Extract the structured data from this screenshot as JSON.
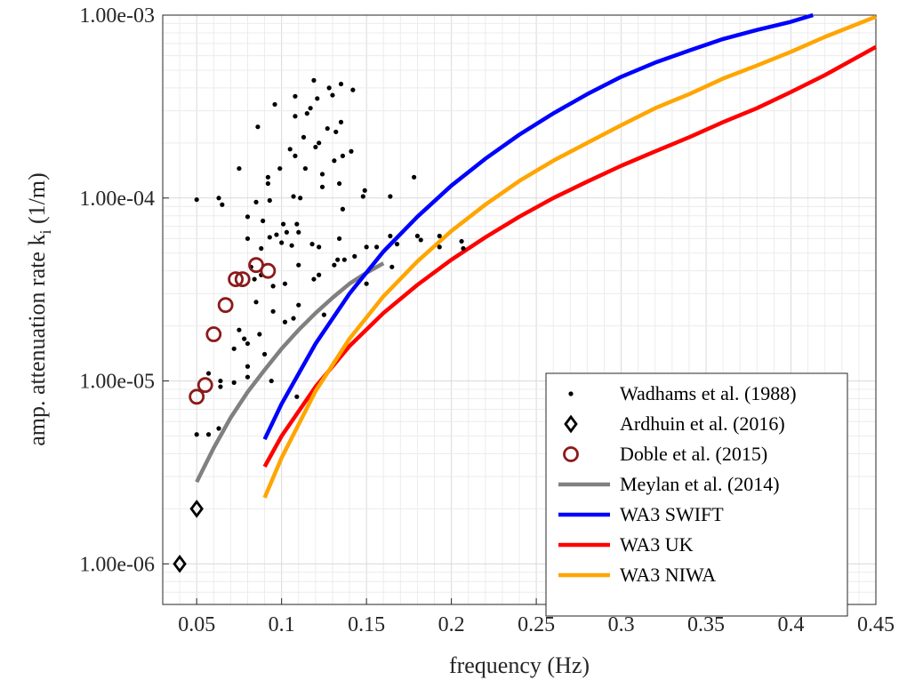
{
  "chart_data": {
    "type": "scatter",
    "xlabel": "frequency (Hz)",
    "ylabel_main": "amp. attenuation rate k",
    "ylabel_sub": "i",
    "ylabel_unit": " (1/m)",
    "xlim": [
      0.03,
      0.45
    ],
    "ylim": [
      6e-07,
      0.001
    ],
    "y_scale": "log",
    "grid": true,
    "legend_position": "bottom-right",
    "x_ticks": [
      0.05,
      0.1,
      0.15,
      0.2,
      0.25,
      0.3,
      0.35,
      0.4,
      0.45
    ],
    "x_tick_labels": [
      "0.05",
      "0.1",
      "0.15",
      "0.2",
      "0.25",
      "0.3",
      "0.35",
      "0.4",
      "0.45"
    ],
    "y_ticks": [
      1e-06,
      1e-05,
      0.0001,
      0.001
    ],
    "y_tick_labels": [
      "1.00e-06",
      "1.00e-05",
      "1.00e-04",
      "1.00e-03"
    ],
    "series": [
      {
        "name": "Wadhams et al. (1988)",
        "kind": "dots",
        "color": "#000000",
        "points": [
          [
            0.05,
            9.8e-05
          ],
          [
            0.05,
            5.1e-06
          ],
          [
            0.057,
            5.1e-06
          ],
          [
            0.057,
            1.1e-05
          ],
          [
            0.063,
            0.0001
          ],
          [
            0.065,
            9.2e-05
          ],
          [
            0.063,
            5.5e-06
          ],
          [
            0.064,
            9.3e-06
          ],
          [
            0.064,
            1e-05
          ],
          [
            0.072,
            9.8e-06
          ],
          [
            0.072,
            1.5e-05
          ],
          [
            0.075,
            0.000145
          ],
          [
            0.075,
            1.9e-05
          ],
          [
            0.078,
            1.7e-05
          ],
          [
            0.08,
            1.6e-05
          ],
          [
            0.08,
            1.2e-05
          ],
          [
            0.08,
            1.05e-05
          ],
          [
            0.08,
            7.9e-05
          ],
          [
            0.08,
            6e-05
          ],
          [
            0.082,
            4.2e-05
          ],
          [
            0.084,
            3.6e-05
          ],
          [
            0.085,
            2.7e-05
          ],
          [
            0.085,
            9.5e-05
          ],
          [
            0.086,
            0.000245
          ],
          [
            0.087,
            1.8e-05
          ],
          [
            0.088,
            3.8e-05
          ],
          [
            0.088,
            5.3e-05
          ],
          [
            0.089,
            7.5e-05
          ],
          [
            0.09,
            1.4e-05
          ],
          [
            0.092,
            0.00013
          ],
          [
            0.092,
            0.00012
          ],
          [
            0.093,
            9.7e-05
          ],
          [
            0.093,
            6.1e-05
          ],
          [
            0.094,
            1e-05
          ],
          [
            0.095,
            2.4e-05
          ],
          [
            0.095,
            3.3e-05
          ],
          [
            0.096,
            0.000325
          ],
          [
            0.097,
            6.3e-05
          ],
          [
            0.099,
            0.000145
          ],
          [
            0.1,
            5.7e-05
          ],
          [
            0.101,
            7.2e-05
          ],
          [
            0.102,
            2.1e-05
          ],
          [
            0.102,
            3.4e-05
          ],
          [
            0.103,
            6.5e-05
          ],
          [
            0.105,
            0.000185
          ],
          [
            0.106,
            5.5e-05
          ],
          [
            0.107,
            2.2e-05
          ],
          [
            0.107,
            0.000102
          ],
          [
            0.108,
            0.00036
          ],
          [
            0.108,
            0.00028
          ],
          [
            0.108,
            0.00017
          ],
          [
            0.109,
            7.2e-05
          ],
          [
            0.11,
            6.5e-05
          ],
          [
            0.11,
            4.3e-05
          ],
          [
            0.11,
            2.6e-05
          ],
          [
            0.111,
            0.0001
          ],
          [
            0.113,
            0.000215
          ],
          [
            0.114,
            0.000145
          ],
          [
            0.115,
            0.00029
          ],
          [
            0.117,
            0.00031
          ],
          [
            0.118,
            5.6e-05
          ],
          [
            0.119,
            3.6e-05
          ],
          [
            0.119,
            0.00044
          ],
          [
            0.12,
            0.00019
          ],
          [
            0.121,
            0.00035
          ],
          [
            0.122,
            0.0002
          ],
          [
            0.122,
            3.8e-05
          ],
          [
            0.122,
            5.4e-05
          ],
          [
            0.124,
            0.000135
          ],
          [
            0.124,
            0.000115
          ],
          [
            0.125,
            2.3e-05
          ],
          [
            0.127,
            0.00024
          ],
          [
            0.128,
            0.0004
          ],
          [
            0.13,
            0.000365
          ],
          [
            0.131,
            0.00016
          ],
          [
            0.131,
            4.3e-05
          ],
          [
            0.132,
            0.00023
          ],
          [
            0.133,
            4.6e-05
          ],
          [
            0.134,
            6e-05
          ],
          [
            0.134,
            0.00012
          ],
          [
            0.135,
            0.00042
          ],
          [
            0.135,
            0.00026
          ],
          [
            0.136,
            0.00017
          ],
          [
            0.136,
            8.7e-05
          ],
          [
            0.137,
            4.6e-05
          ],
          [
            0.141,
            0.00018
          ],
          [
            0.142,
            0.00039
          ],
          [
            0.143,
            4.8e-05
          ],
          [
            0.148,
            0.000102
          ],
          [
            0.149,
            0.00011
          ],
          [
            0.15,
            5.4e-05
          ],
          [
            0.15,
            3.4e-05
          ],
          [
            0.156,
            5.4e-05
          ],
          [
            0.164,
            0.000102
          ],
          [
            0.164,
            6.2e-05
          ],
          [
            0.165,
            4.2e-05
          ],
          [
            0.168,
            5.6e-05
          ],
          [
            0.178,
            0.00013
          ],
          [
            0.18,
            6.2e-05
          ],
          [
            0.182,
            5.9e-05
          ],
          [
            0.193,
            6.2e-05
          ],
          [
            0.193,
            5.4e-05
          ],
          [
            0.206,
            5.8e-05
          ],
          [
            0.207,
            5.3e-05
          ],
          [
            0.109,
            8.2e-06
          ]
        ]
      },
      {
        "name": "Ardhuin et al. (2016)",
        "kind": "diamond",
        "color": "#000000",
        "points": [
          [
            0.04,
            1e-06
          ],
          [
            0.05,
            2e-06
          ]
        ]
      },
      {
        "name": "Doble et al. (2015)",
        "kind": "circle",
        "color": "#8b1a1a",
        "points": [
          [
            0.05,
            8.2e-06
          ],
          [
            0.055,
            9.5e-06
          ],
          [
            0.06,
            1.8e-05
          ],
          [
            0.067,
            2.6e-05
          ],
          [
            0.073,
            3.6e-05
          ],
          [
            0.077,
            3.6e-05
          ],
          [
            0.085,
            4.3e-05
          ],
          [
            0.092,
            4e-05
          ]
        ]
      },
      {
        "name": "Meylan et al. (2014)",
        "kind": "line",
        "color": "#808080",
        "points": [
          [
            0.05,
            2.8e-06
          ],
          [
            0.06,
            4.3e-06
          ],
          [
            0.07,
            6.3e-06
          ],
          [
            0.08,
            8.7e-06
          ],
          [
            0.09,
            1.15e-05
          ],
          [
            0.1,
            1.5e-05
          ],
          [
            0.11,
            1.9e-05
          ],
          [
            0.12,
            2.35e-05
          ],
          [
            0.13,
            2.85e-05
          ],
          [
            0.14,
            3.4e-05
          ],
          [
            0.15,
            3.9e-05
          ],
          [
            0.16,
            4.4e-05
          ]
        ]
      },
      {
        "name": "WA3 SWIFT",
        "kind": "line",
        "color": "#0000ff",
        "points": [
          [
            0.09,
            4.8e-06
          ],
          [
            0.1,
            7.5e-06
          ],
          [
            0.12,
            1.6e-05
          ],
          [
            0.14,
            3e-05
          ],
          [
            0.16,
            5.1e-05
          ],
          [
            0.18,
            7.9e-05
          ],
          [
            0.2,
            0.000117
          ],
          [
            0.22,
            0.000164
          ],
          [
            0.24,
            0.000222
          ],
          [
            0.26,
            0.00029
          ],
          [
            0.28,
            0.00037
          ],
          [
            0.3,
            0.00046
          ],
          [
            0.32,
            0.00055
          ],
          [
            0.34,
            0.00064
          ],
          [
            0.36,
            0.00074
          ],
          [
            0.38,
            0.00083
          ],
          [
            0.4,
            0.00092
          ],
          [
            0.413,
            0.001
          ]
        ]
      },
      {
        "name": "WA3 UK",
        "kind": "line",
        "color": "#ff0000",
        "points": [
          [
            0.09,
            3.4e-06
          ],
          [
            0.1,
            5e-06
          ],
          [
            0.12,
            9.3e-06
          ],
          [
            0.14,
            1.55e-05
          ],
          [
            0.16,
            2.35e-05
          ],
          [
            0.18,
            3.35e-05
          ],
          [
            0.2,
            4.6e-05
          ],
          [
            0.22,
            6.1e-05
          ],
          [
            0.24,
            7.9e-05
          ],
          [
            0.26,
            0.0001
          ],
          [
            0.28,
            0.000123
          ],
          [
            0.3,
            0.00015
          ],
          [
            0.32,
            0.00018
          ],
          [
            0.34,
            0.000215
          ],
          [
            0.36,
            0.00026
          ],
          [
            0.38,
            0.00031
          ],
          [
            0.4,
            0.00038
          ],
          [
            0.42,
            0.00047
          ],
          [
            0.45,
            0.00067
          ]
        ]
      },
      {
        "name": "WA3 NIWA",
        "kind": "line",
        "color": "#ffa500",
        "points": [
          [
            0.09,
            2.3e-06
          ],
          [
            0.1,
            3.8e-06
          ],
          [
            0.12,
            8.8e-06
          ],
          [
            0.14,
            1.7e-05
          ],
          [
            0.16,
            2.9e-05
          ],
          [
            0.18,
            4.5e-05
          ],
          [
            0.2,
            6.6e-05
          ],
          [
            0.22,
            9.2e-05
          ],
          [
            0.24,
            0.000124
          ],
          [
            0.26,
            0.00016
          ],
          [
            0.28,
            0.0002
          ],
          [
            0.3,
            0.00025
          ],
          [
            0.32,
            0.00031
          ],
          [
            0.34,
            0.00037
          ],
          [
            0.36,
            0.00045
          ],
          [
            0.38,
            0.00053
          ],
          [
            0.4,
            0.00063
          ],
          [
            0.42,
            0.00076
          ],
          [
            0.45,
            0.00098
          ]
        ]
      }
    ]
  }
}
